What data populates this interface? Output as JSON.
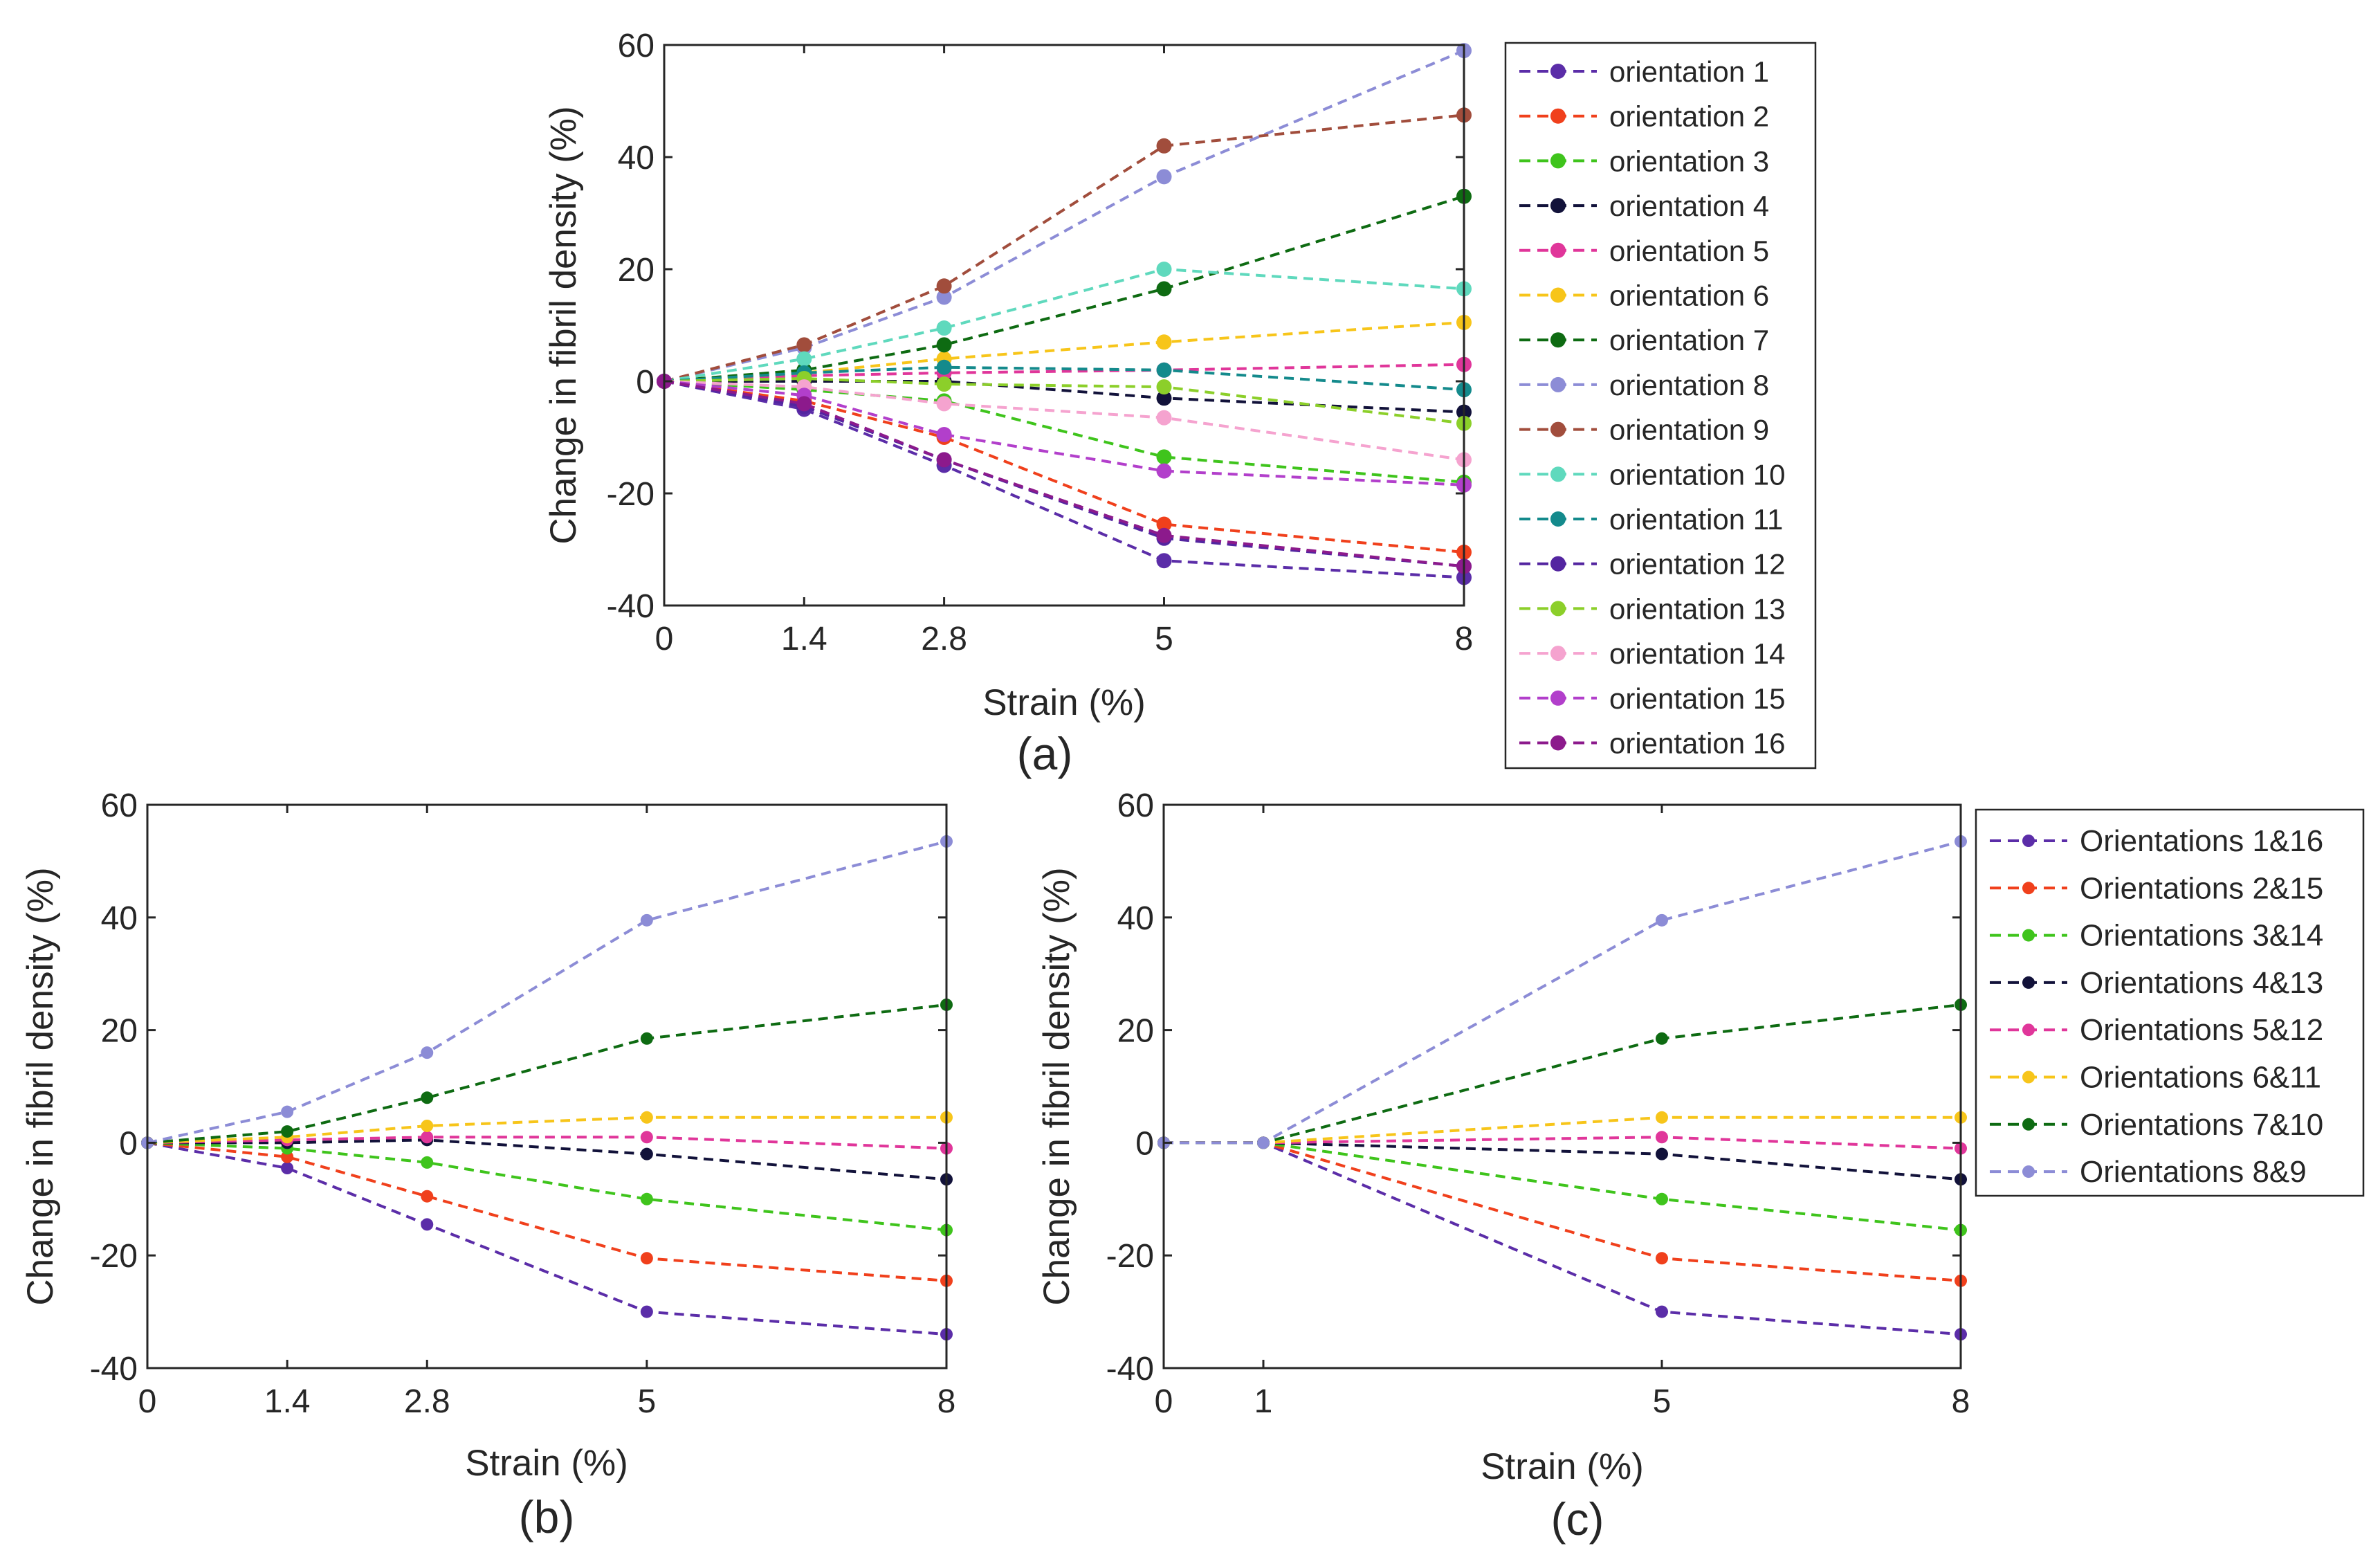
{
  "chart_data": [
    {
      "panel_label": "(a)",
      "type": "line",
      "x": [
        0,
        1.4,
        2.8,
        5,
        8
      ],
      "xticks": [
        "0",
        "1.4",
        "2.8",
        "5",
        "8"
      ],
      "yticks": [
        "-40",
        "-20",
        "0",
        "20",
        "40",
        "60"
      ],
      "xlabel": "Strain (%)",
      "ylabel": "Change in fibril density (%)",
      "xlim": [
        0,
        8
      ],
      "ylim": [
        -40,
        60
      ],
      "legend": "right",
      "series": [
        {
          "name": "orientation 1",
          "color": "#5b2da8",
          "values": [
            0,
            -5,
            -15,
            -32,
            -35
          ]
        },
        {
          "name": "orientation 2",
          "color": "#f0401c",
          "values": [
            0,
            -3.5,
            -10,
            -25.5,
            -30.5
          ]
        },
        {
          "name": "orientation 3",
          "color": "#3fc41c",
          "values": [
            0,
            -1.5,
            -3.5,
            -13.5,
            -18
          ]
        },
        {
          "name": "orientation 4",
          "color": "#12123a",
          "values": [
            0,
            0,
            0,
            -3,
            -5.5
          ]
        },
        {
          "name": "orientation 5",
          "color": "#e0369a",
          "values": [
            0,
            1,
            1.5,
            2,
            3
          ]
        },
        {
          "name": "orientation 6",
          "color": "#f7c51a",
          "values": [
            0,
            1.5,
            4,
            7,
            10.5
          ]
        },
        {
          "name": "orientation 7",
          "color": "#0e6b12",
          "values": [
            0,
            2,
            6.5,
            16.5,
            33
          ]
        },
        {
          "name": "orientation 8",
          "color": "#8c8cd6",
          "values": [
            0,
            6,
            15,
            36.5,
            59
          ]
        },
        {
          "name": "orientation 9",
          "color": "#a14d3c",
          "values": [
            0,
            6.5,
            17,
            42,
            47.5
          ]
        },
        {
          "name": "orientation 10",
          "color": "#5fd9bd",
          "values": [
            0,
            4,
            9.5,
            20,
            16.5
          ]
        },
        {
          "name": "orientation 11",
          "color": "#148a8c",
          "values": [
            0,
            1.5,
            2.5,
            2,
            -1.5
          ]
        },
        {
          "name": "orientation 12",
          "color": "#5325a0",
          "values": [
            0,
            -4.5,
            -14,
            -28,
            -33
          ]
        },
        {
          "name": "orientation 13",
          "color": "#8ccf2a",
          "values": [
            0,
            0.5,
            -0.5,
            -1,
            -7.5
          ]
        },
        {
          "name": "orientation 14",
          "color": "#f5a3cf",
          "values": [
            0,
            -1,
            -4,
            -6.5,
            -14
          ]
        },
        {
          "name": "orientation 15",
          "color": "#b23fcb",
          "values": [
            0,
            -2.5,
            -9.5,
            -16,
            -18.5
          ]
        },
        {
          "name": "orientation 16",
          "color": "#8c1a8c",
          "values": [
            0,
            -4,
            -14,
            -27.5,
            -33
          ]
        }
      ]
    },
    {
      "panel_label": "(b)",
      "type": "line",
      "x": [
        0,
        1.4,
        2.8,
        5,
        8
      ],
      "xticks": [
        "0",
        "1.4",
        "2.8",
        "5",
        "8"
      ],
      "yticks": [
        "-40",
        "-20",
        "0",
        "20",
        "40",
        "60"
      ],
      "xlabel": "Strain (%)",
      "ylabel": "Change in fibril density (%)",
      "xlim": [
        0,
        8
      ],
      "ylim": [
        -40,
        60
      ],
      "series": [
        {
          "name": "Orientations 1&16",
          "color": "#5b2da8",
          "values": [
            0,
            -4.5,
            -14.5,
            -30,
            -34
          ]
        },
        {
          "name": "Orientations 2&15",
          "color": "#f0401c",
          "values": [
            0,
            -2.5,
            -9.5,
            -20.5,
            -24.5
          ]
        },
        {
          "name": "Orientations 3&14",
          "color": "#3fc41c",
          "values": [
            0,
            -1,
            -3.5,
            -10,
            -15.5
          ]
        },
        {
          "name": "Orientations 4&13",
          "color": "#12123a",
          "values": [
            0,
            0,
            0.5,
            -2,
            -6.5
          ]
        },
        {
          "name": "Orientations 5&12",
          "color": "#e0369a",
          "values": [
            0,
            0.5,
            1,
            1,
            -1
          ]
        },
        {
          "name": "Orientations 6&11",
          "color": "#f7c51a",
          "values": [
            0,
            1,
            3,
            4.5,
            4.5
          ]
        },
        {
          "name": "Orientations 7&10",
          "color": "#0e6b12",
          "values": [
            0,
            2,
            8,
            18.5,
            24.5
          ]
        },
        {
          "name": "Orientations 8&9",
          "color": "#8c8cd6",
          "values": [
            0,
            5.5,
            16,
            39.5,
            53.5
          ]
        }
      ]
    },
    {
      "panel_label": "(c)",
      "type": "line",
      "x": [
        0,
        1,
        5,
        8
      ],
      "xticks": [
        "0",
        "1",
        "5",
        "8"
      ],
      "yticks": [
        "-40",
        "-20",
        "0",
        "20",
        "40",
        "60"
      ],
      "xlabel": "Strain (%)",
      "ylabel": "Change in fibril density (%)",
      "xlim": [
        0,
        8
      ],
      "ylim": [
        -40,
        60
      ],
      "legend": "right",
      "series": [
        {
          "name": "Orientations 1&16",
          "color": "#5b2da8",
          "values": [
            0,
            0,
            -30,
            -34
          ]
        },
        {
          "name": "Orientations 2&15",
          "color": "#f0401c",
          "values": [
            0,
            0,
            -20.5,
            -24.5
          ]
        },
        {
          "name": "Orientations 3&14",
          "color": "#3fc41c",
          "values": [
            0,
            0,
            -10,
            -15.5
          ]
        },
        {
          "name": "Orientations 4&13",
          "color": "#12123a",
          "values": [
            0,
            0,
            -2,
            -6.5
          ]
        },
        {
          "name": "Orientations 5&12",
          "color": "#e0369a",
          "values": [
            0,
            0,
            1,
            -1
          ]
        },
        {
          "name": "Orientations 6&11",
          "color": "#f7c51a",
          "values": [
            0,
            0,
            4.5,
            4.5
          ]
        },
        {
          "name": "Orientations 7&10",
          "color": "#0e6b12",
          "values": [
            0,
            0,
            18.5,
            24.5
          ]
        },
        {
          "name": "Orientations 8&9",
          "color": "#8c8cd6",
          "values": [
            0,
            0,
            39.5,
            53.5
          ]
        }
      ]
    }
  ]
}
